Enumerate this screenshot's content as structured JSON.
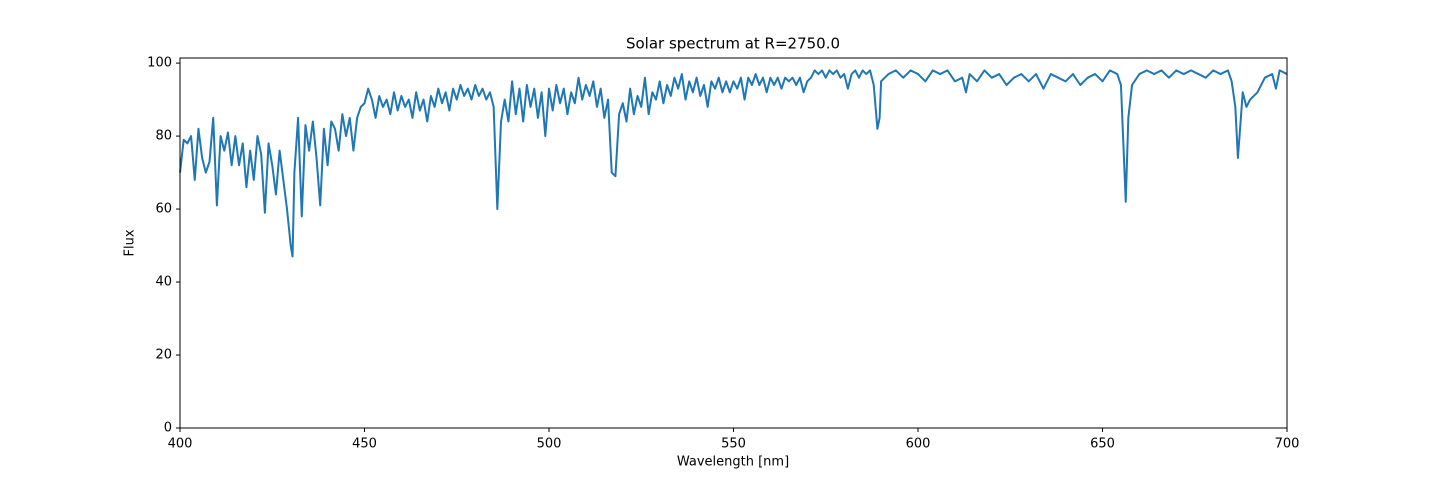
{
  "chart_data": {
    "type": "line",
    "title": "Solar spectrum at R=2750.0",
    "x_label": "Wavelength [nm]",
    "y_label": "Flux",
    "color": "#1f77b4",
    "x": [
      400,
      401,
      402,
      403,
      404,
      405,
      406,
      407,
      408,
      409,
      410,
      411,
      412,
      413,
      414,
      415,
      416,
      417,
      418,
      419,
      420,
      421,
      422,
      423,
      424,
      425,
      426,
      427,
      428,
      429,
      430,
      430.5,
      431,
      432,
      433,
      434,
      435,
      436,
      437,
      438,
      439,
      440,
      441,
      442,
      443,
      444,
      445,
      446,
      447,
      448,
      449,
      450,
      451,
      452,
      453,
      454,
      455,
      456,
      457,
      458,
      459,
      460,
      461,
      462,
      463,
      464,
      465,
      466,
      467,
      468,
      469,
      470,
      471,
      472,
      473,
      474,
      475,
      476,
      477,
      478,
      479,
      480,
      481,
      482,
      483,
      484,
      485,
      486,
      487,
      488,
      489,
      490,
      491,
      492,
      493,
      494,
      495,
      496,
      497,
      498,
      499,
      500,
      501,
      502,
      503,
      504,
      505,
      506,
      507,
      508,
      509,
      510,
      511,
      512,
      513,
      514,
      515,
      516,
      517,
      518,
      519,
      520,
      521,
      522,
      523,
      524,
      525,
      526,
      527,
      528,
      529,
      530,
      531,
      532,
      533,
      534,
      535,
      536,
      537,
      538,
      539,
      540,
      541,
      542,
      543,
      544,
      545,
      546,
      547,
      548,
      549,
      550,
      551,
      552,
      553,
      554,
      555,
      556,
      557,
      558,
      559,
      560,
      561,
      562,
      563,
      564,
      565,
      566,
      567,
      568,
      569,
      570,
      571,
      572,
      573,
      574,
      575,
      576,
      577,
      578,
      579,
      580,
      581,
      582,
      583,
      584,
      585,
      586,
      587,
      588,
      589,
      589.6,
      590,
      592,
      594,
      596,
      598,
      600,
      602,
      604,
      606,
      608,
      610,
      612,
      613,
      614,
      616,
      618,
      620,
      622,
      624,
      626,
      628,
      630,
      632,
      634,
      636,
      638,
      640,
      642,
      644,
      646,
      648,
      650,
      652,
      654,
      655,
      656.3,
      657,
      658,
      660,
      662,
      664,
      666,
      668,
      670,
      672,
      674,
      676,
      678,
      680,
      682,
      684,
      685,
      686,
      686.7,
      687.5,
      688,
      689,
      690,
      692,
      694,
      696,
      697,
      698,
      700
    ],
    "values": [
      70,
      79,
      78,
      80,
      68,
      82,
      74,
      70,
      73,
      85,
      61,
      80,
      76,
      81,
      72,
      80,
      72,
      78,
      66,
      76,
      68,
      80,
      75,
      59,
      78,
      72,
      64,
      76,
      68,
      60,
      50,
      47,
      70,
      85,
      58,
      83,
      76,
      84,
      74,
      61,
      82,
      72,
      84,
      82,
      76,
      86,
      80,
      85,
      76,
      85,
      88,
      89,
      93,
      90,
      85,
      91,
      88,
      90,
      86,
      92,
      87,
      91,
      88,
      90,
      85,
      92,
      87,
      90,
      84,
      91,
      88,
      93,
      89,
      92,
      87,
      93,
      90,
      94,
      91,
      93,
      90,
      94,
      91,
      93,
      90,
      92,
      88,
      60,
      84,
      90,
      84,
      95,
      86,
      93,
      84,
      94,
      88,
      93,
      85,
      92,
      80,
      93,
      87,
      94,
      89,
      93,
      86,
      92,
      89,
      96,
      90,
      94,
      91,
      95,
      88,
      93,
      85,
      90,
      70,
      69,
      86,
      89,
      84,
      93,
      86,
      91,
      88,
      96,
      86,
      92,
      90,
      95,
      89,
      94,
      91,
      96,
      93,
      97,
      90,
      95,
      92,
      96,
      91,
      94,
      88,
      95,
      93,
      96,
      92,
      95,
      92,
      95,
      93,
      96,
      90,
      96,
      94,
      97,
      94,
      96,
      92,
      96,
      94,
      96,
      93,
      96,
      95,
      96,
      94,
      96,
      92,
      95,
      96,
      98,
      97,
      98,
      96,
      98,
      97,
      98,
      96,
      97,
      93,
      97,
      98,
      96,
      98,
      97,
      98,
      94,
      82,
      85,
      95,
      97,
      98,
      96,
      98,
      97,
      95,
      98,
      97,
      98,
      95,
      96,
      92,
      97,
      95,
      98,
      96,
      97,
      94,
      96,
      97,
      95,
      97,
      93,
      97,
      96,
      95,
      97,
      94,
      96,
      97,
      95,
      98,
      97,
      94,
      62,
      85,
      94,
      97,
      98,
      97,
      98,
      96,
      98,
      97,
      98,
      97,
      96,
      98,
      97,
      98,
      95,
      88,
      74,
      85,
      92,
      88,
      90,
      92,
      96,
      97,
      93,
      98,
      97
    ],
    "xlim": [
      400,
      700
    ],
    "ylim": [
      0,
      101.4
    ],
    "xticks": [
      400,
      450,
      500,
      550,
      600,
      650,
      700
    ],
    "yticks": [
      0,
      20,
      40,
      60,
      80,
      100
    ]
  }
}
